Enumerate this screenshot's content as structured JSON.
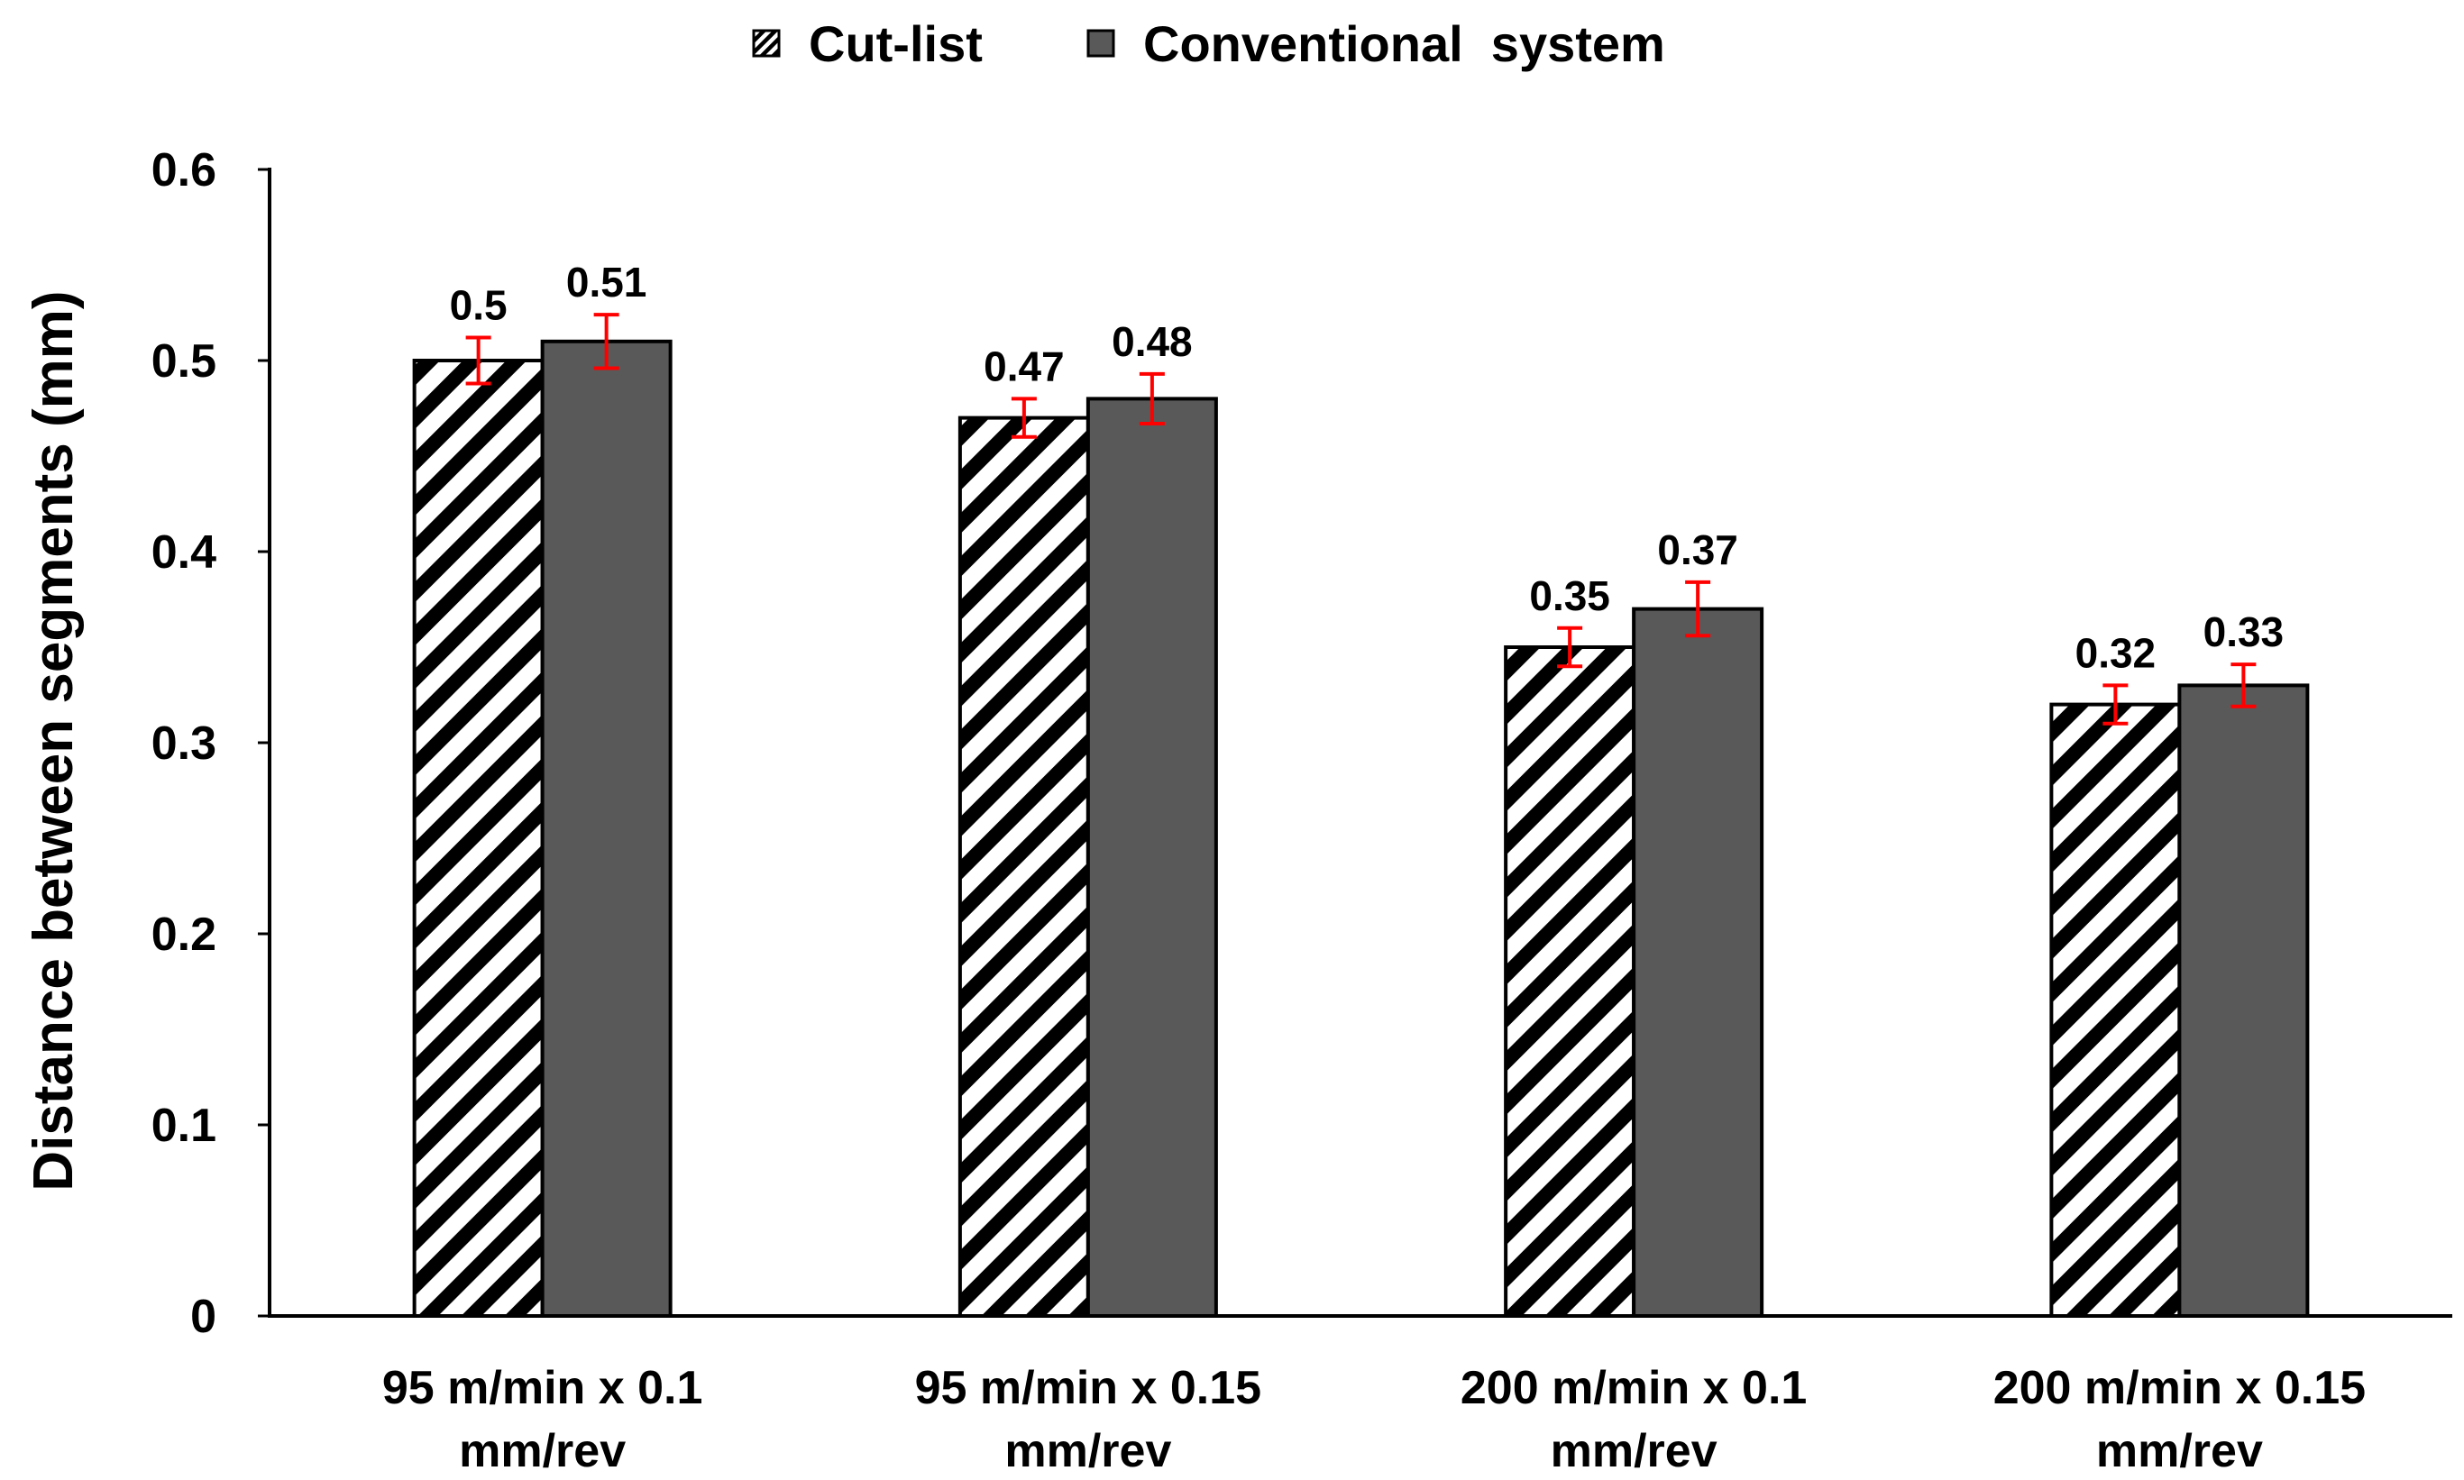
{
  "chart_data": {
    "type": "bar",
    "title": "",
    "xlabel": "",
    "ylabel": "Distance between segments (mm)",
    "ylim": [
      0,
      0.6
    ],
    "yticks": [
      "0",
      "0.1",
      "0.2",
      "0.3",
      "0.4",
      "0.5",
      "0.6"
    ],
    "grid": false,
    "legend_position": "top-center",
    "categories": [
      [
        "95 m/min x 0.1",
        "mm/rev"
      ],
      [
        "95 m/min x 0.15",
        "mm/rev"
      ],
      [
        "200 m/min x 0.1",
        "mm/rev"
      ],
      [
        "200 m/min x 0.15",
        "mm/rev"
      ]
    ],
    "series": [
      {
        "name": "Cut-list",
        "pattern": "diagonal-hatch",
        "values": [
          0.5,
          0.47,
          0.35,
          0.32
        ],
        "labels": [
          "0.5",
          "0.47",
          "0.35",
          "0.32"
        ],
        "error": [
          0.012,
          0.01,
          0.01,
          0.01
        ]
      },
      {
        "name": "Conventional  system",
        "pattern": "solid",
        "values": [
          0.51,
          0.48,
          0.37,
          0.33
        ],
        "labels": [
          "0.51",
          "0.48",
          "0.37",
          "0.33"
        ],
        "error": [
          0.014,
          0.013,
          0.014,
          0.011
        ]
      }
    ],
    "colors": {
      "solid_fill": "#595959",
      "hatch_stripe": "#000000",
      "hatch_background": "#ffffff",
      "bar_outline": "#000000",
      "error_bar": "#ff0000",
      "axis": "#000000"
    }
  }
}
